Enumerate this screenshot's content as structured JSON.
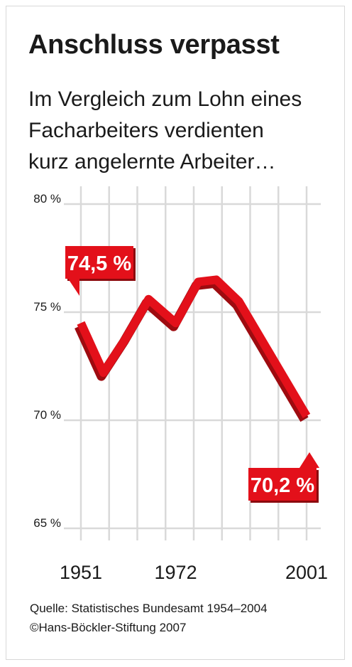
{
  "header": {
    "title": "Anschluss verpasst",
    "subtitle_lines": [
      "Im Vergleich zum Lohn eines",
      "Facharbeiters verdienten",
      "kurz angelernte Arbeiter…"
    ]
  },
  "footer": {
    "source": "Quelle: Statistisches Bundesamt 1954–2004",
    "copyright": "©Hans-Böckler-Stiftung 2007"
  },
  "chart_data": {
    "type": "line",
    "x": [
      1951,
      1956,
      1961,
      1966,
      1972,
      1977,
      1981,
      1986,
      2001
    ],
    "series": [
      {
        "values": [
          74.5,
          72.2,
          73.8,
          75.6,
          74.5,
          76.4,
          76.5,
          75.5,
          70.2
        ]
      }
    ],
    "x_tick_labels": [
      "1951",
      "1972",
      "2001"
    ],
    "x_tick_values": [
      1951,
      1972,
      2001
    ],
    "y_tick_labels": [
      "80 %",
      "75 %",
      "70 %",
      "65 %"
    ],
    "y_tick_values": [
      80,
      75,
      70,
      65
    ],
    "ylim": [
      65,
      80
    ],
    "grid": true,
    "annotations": [
      {
        "text": "74,5 %",
        "x": 1951,
        "y": 74.5,
        "position": "above"
      },
      {
        "text": "70,2 %",
        "x": 2001,
        "y": 70.2,
        "position": "below"
      }
    ],
    "colors": {
      "line": "#e3101a",
      "line_shadow": "#9e0b10",
      "grid": "#d9d9d9",
      "label_box": "#e3101a",
      "label_text": "#ffffff"
    }
  }
}
